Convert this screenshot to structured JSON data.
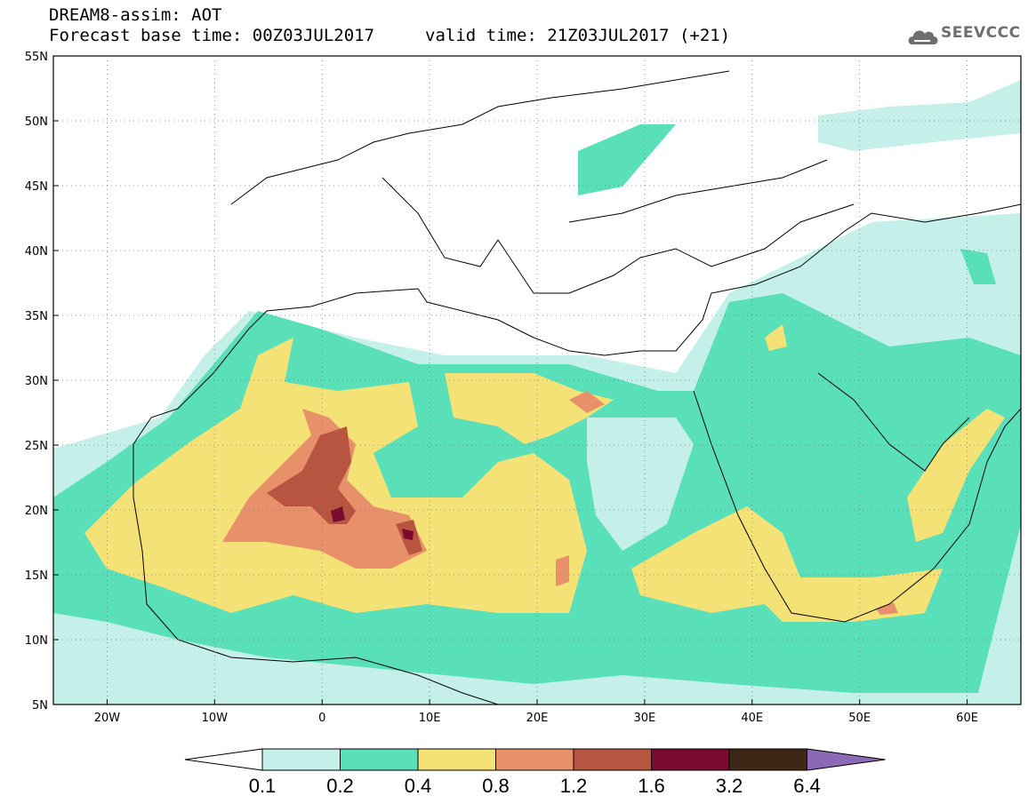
{
  "header": {
    "title_line1": "DREAM8-assim: AOT",
    "title_line2": "Forecast base time: 00Z03JUL2017",
    "valid_time": "valid time: 21Z03JUL2017 (+21)",
    "logo_text": "SEEVCCC"
  },
  "map": {
    "variable": "AOT",
    "lat_labels": [
      "55N",
      "50N",
      "45N",
      "40N",
      "35N",
      "30N",
      "25N",
      "20N",
      "15N",
      "10N",
      "5N"
    ],
    "lon_labels": [
      "20W",
      "10W",
      "0",
      "10E",
      "20E",
      "30E",
      "40E",
      "50E",
      "60E"
    ],
    "lat_range": [
      5,
      55
    ],
    "lon_range": [
      -25,
      65
    ]
  },
  "colorbar": {
    "levels": [
      "0.1",
      "0.2",
      "0.4",
      "0.8",
      "1.2",
      "1.6",
      "3.2",
      "6.4"
    ],
    "colors": [
      "#ffffff",
      "#c5f0ea",
      "#5ae0b9",
      "#f5e276",
      "#e8906a",
      "#b85540",
      "#7a0a2e",
      "#3e2716",
      "#8b69b4"
    ]
  }
}
